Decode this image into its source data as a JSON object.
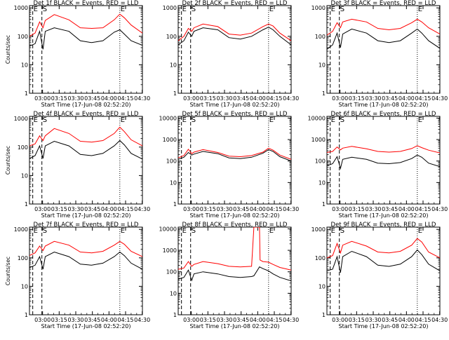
{
  "chart_data": [
    {
      "type": "line",
      "title": "Det 1f BLACK = Events, RED = LLD",
      "xlabel": "Start Time (17-Jun-08 02:52:20)",
      "ylabel": "Counts/sec",
      "yscale": "log",
      "ylim": [
        1,
        1200
      ],
      "xlim": [
        0,
        100
      ],
      "xtick_labels": [
        "03:00",
        "03:15",
        "03:30",
        "03:45",
        "04:00",
        "04:15",
        "04:30"
      ],
      "ytick_labels": [
        "1",
        "10",
        "100",
        "1000"
      ],
      "markers": [
        {
          "label": "E",
          "x": 2.9
        },
        {
          "label": "S",
          "x": 11
        },
        {
          "label": "E",
          "x": 80
        }
      ],
      "series": [
        {
          "color": "#ff0000",
          "x": [
            0,
            5,
            9,
            12,
            14,
            22,
            35,
            45,
            55,
            65,
            75,
            80,
            84,
            90,
            100
          ],
          "values": [
            100,
            130,
            320,
            200,
            360,
            580,
            380,
            200,
            190,
            200,
            380,
            600,
            450,
            250,
            130
          ]
        },
        {
          "color": "#000000",
          "x": [
            0,
            5,
            9,
            12,
            14,
            22,
            35,
            45,
            55,
            65,
            75,
            80,
            84,
            90,
            100
          ],
          "values": [
            45,
            55,
            150,
            35,
            150,
            200,
            150,
            70,
            60,
            70,
            140,
            170,
            120,
            70,
            48
          ]
        }
      ]
    },
    {
      "type": "line",
      "title": "Det 2f BLACK = Events, RED = LLD",
      "xlabel": "Start Time (17-Jun-08 02:52:20)",
      "ylabel": "",
      "yscale": "log",
      "ylim": [
        1,
        1200
      ],
      "xlim": [
        0,
        100
      ],
      "xtick_labels": [
        "03:00",
        "03:15",
        "03:30",
        "03:45",
        "04:00",
        "04:15",
        "04:30"
      ],
      "ytick_labels": [
        "1",
        "10",
        "100",
        "1000"
      ],
      "markers": [
        {
          "label": "E",
          "x": 2.9
        },
        {
          "label": "S",
          "x": 11
        },
        {
          "label": "E",
          "x": 80
        }
      ],
      "series": [
        {
          "color": "#ff0000",
          "x": [
            0,
            5,
            9,
            12,
            14,
            22,
            35,
            45,
            55,
            65,
            75,
            80,
            84,
            90,
            100
          ],
          "values": [
            70,
            100,
            190,
            150,
            200,
            270,
            220,
            120,
            110,
            130,
            220,
            270,
            230,
            130,
            70
          ]
        },
        {
          "color": "#000000",
          "x": [
            0,
            5,
            9,
            12,
            14,
            22,
            35,
            45,
            55,
            65,
            75,
            80,
            84,
            90,
            100
          ],
          "values": [
            50,
            70,
            140,
            100,
            150,
            200,
            170,
            90,
            80,
            100,
            170,
            210,
            170,
            100,
            50
          ]
        }
      ]
    },
    {
      "type": "line",
      "title": "Det 3f BLACK = Events, RED = LLD",
      "xlabel": "Start Time (17-Jun-08 02:52:20)",
      "ylabel": "",
      "yscale": "log",
      "ylim": [
        1,
        1200
      ],
      "xlim": [
        0,
        100
      ],
      "xtick_labels": [
        "03:00",
        "03:15",
        "03:30",
        "03:45",
        "04:00",
        "04:15",
        "04:30"
      ],
      "ytick_labels": [
        "1",
        "10",
        "100",
        "1000"
      ],
      "markers": [
        {
          "label": "E",
          "x": 2.9
        },
        {
          "label": "S",
          "x": 11
        },
        {
          "label": "E",
          "x": 80
        }
      ],
      "series": [
        {
          "color": "#ff0000",
          "x": [
            0,
            5,
            9,
            12,
            14,
            22,
            35,
            45,
            55,
            65,
            75,
            80,
            84,
            90,
            100
          ],
          "values": [
            110,
            150,
            300,
            200,
            320,
            400,
            320,
            190,
            170,
            190,
            300,
            400,
            320,
            200,
            120
          ]
        },
        {
          "color": "#000000",
          "x": [
            0,
            5,
            9,
            12,
            14,
            22,
            35,
            45,
            55,
            65,
            75,
            80,
            84,
            90,
            100
          ],
          "values": [
            35,
            50,
            130,
            40,
            120,
            180,
            130,
            70,
            60,
            70,
            130,
            180,
            130,
            70,
            38
          ]
        }
      ]
    },
    {
      "type": "line",
      "title": "Det 4f BLACK = Events, RED = LLD",
      "xlabel": "Start Time (17-Jun-08 02:52:20)",
      "ylabel": "Counts/sec",
      "yscale": "log",
      "ylim": [
        1,
        1200
      ],
      "xlim": [
        0,
        100
      ],
      "xtick_labels": [
        "03:00",
        "03:15",
        "03:30",
        "03:45",
        "04:00",
        "04:15",
        "04:30"
      ],
      "ytick_labels": [
        "1",
        "10",
        "100",
        "1000"
      ],
      "markers": [
        {
          "label": "E",
          "x": 2.9
        },
        {
          "label": "S",
          "x": 11
        },
        {
          "label": "E",
          "x": 80
        }
      ],
      "series": [
        {
          "color": "#ff0000",
          "x": [
            0,
            5,
            9,
            12,
            14,
            22,
            35,
            45,
            55,
            65,
            75,
            80,
            84,
            90,
            100
          ],
          "values": [
            110,
            130,
            250,
            170,
            250,
            450,
            300,
            160,
            150,
            170,
            300,
            500,
            350,
            180,
            110
          ]
        },
        {
          "color": "#000000",
          "x": [
            0,
            5,
            9,
            12,
            14,
            22,
            35,
            45,
            55,
            65,
            75,
            80,
            84,
            90,
            100
          ],
          "values": [
            40,
            50,
            110,
            40,
            110,
            160,
            110,
            55,
            50,
            60,
            110,
            170,
            120,
            60,
            38
          ]
        }
      ]
    },
    {
      "type": "line",
      "title": "Det 5f BLACK = Events, RED = LLD",
      "xlabel": "Start Time (17-Jun-08 02:52:20)",
      "ylabel": "",
      "yscale": "log",
      "ylim": [
        1,
        12000
      ],
      "xlim": [
        0,
        100
      ],
      "xtick_labels": [
        "03:00",
        "03:15",
        "03:30",
        "03:45",
        "04:00",
        "04:15",
        "04:30"
      ],
      "ytick_labels": [
        "1",
        "10",
        "100",
        "1000",
        "10000"
      ],
      "markers": [
        {
          "label": "E",
          "x": 2.9
        },
        {
          "label": "S",
          "x": 11
        },
        {
          "label": "E",
          "x": 80
        }
      ],
      "series": [
        {
          "color": "#ff0000",
          "x": [
            0,
            5,
            9,
            12,
            14,
            22,
            35,
            45,
            55,
            65,
            75,
            80,
            84,
            90,
            100
          ],
          "values": [
            140,
            180,
            350,
            220,
            260,
            340,
            250,
            170,
            160,
            180,
            260,
            400,
            320,
            190,
            120
          ]
        },
        {
          "color": "#000000",
          "x": [
            0,
            5,
            9,
            12,
            14,
            22,
            35,
            45,
            55,
            65,
            75,
            80,
            84,
            90,
            100
          ],
          "values": [
            120,
            150,
            250,
            190,
            210,
            280,
            220,
            140,
            130,
            150,
            230,
            340,
            280,
            160,
            100
          ]
        }
      ]
    },
    {
      "type": "line",
      "title": "Det 6f BLACK = Events, RED = LLD",
      "xlabel": "Start Time (17-Jun-08 02:52:20)",
      "ylabel": "",
      "yscale": "log",
      "ylim": [
        1,
        12000
      ],
      "xlim": [
        0,
        100
      ],
      "xtick_labels": [
        "03:00",
        "03:15",
        "03:30",
        "03:45",
        "04:00",
        "04:15",
        "04:30"
      ],
      "ytick_labels": [
        "1",
        "10",
        "100",
        "1000",
        "10000"
      ],
      "markers": [
        {
          "label": "E",
          "x": 2.9
        },
        {
          "label": "S",
          "x": 11
        },
        {
          "label": "E",
          "x": 80
        }
      ],
      "series": [
        {
          "color": "#ff0000",
          "x": [
            0,
            5,
            9,
            12,
            14,
            22,
            35,
            45,
            55,
            65,
            75,
            80,
            84,
            90,
            100
          ],
          "values": [
            250,
            280,
            450,
            330,
            400,
            480,
            370,
            280,
            260,
            280,
            380,
            520,
            420,
            320,
            240
          ]
        },
        {
          "color": "#000000",
          "x": [
            0,
            5,
            9,
            12,
            14,
            22,
            35,
            45,
            55,
            65,
            75,
            80,
            84,
            90,
            100
          ],
          "values": [
            60,
            75,
            160,
            45,
            120,
            150,
            120,
            80,
            75,
            85,
            130,
            190,
            150,
            80,
            55
          ]
        }
      ]
    },
    {
      "type": "line",
      "title": "Det 7f BLACK = Events, RED = LLD",
      "xlabel": "Start Time (17-Jun-08 02:52:20)",
      "ylabel": "Counts/sec",
      "yscale": "log",
      "ylim": [
        1,
        1200
      ],
      "xlim": [
        0,
        100
      ],
      "xtick_labels": [
        "03:00",
        "03:15",
        "03:30",
        "03:45",
        "04:00",
        "04:15",
        "04:30"
      ],
      "ytick_labels": [
        "1",
        "10",
        "100",
        "1000"
      ],
      "markers": [
        {
          "label": "E",
          "x": 2.9
        },
        {
          "label": "S",
          "x": 11
        },
        {
          "label": "E",
          "x": 80
        }
      ],
      "series": [
        {
          "color": "#ff0000",
          "x": [
            0,
            5,
            9,
            12,
            14,
            22,
            35,
            45,
            55,
            65,
            75,
            80,
            84,
            90,
            100
          ],
          "values": [
            120,
            150,
            260,
            180,
            260,
            380,
            280,
            160,
            150,
            170,
            280,
            380,
            300,
            170,
            110
          ]
        },
        {
          "color": "#000000",
          "x": [
            0,
            5,
            9,
            12,
            14,
            22,
            35,
            45,
            55,
            65,
            75,
            80,
            84,
            90,
            100
          ],
          "values": [
            45,
            55,
            110,
            40,
            110,
            160,
            110,
            60,
            55,
            65,
            110,
            160,
            120,
            65,
            40
          ]
        }
      ]
    },
    {
      "type": "line",
      "title": "Det 8f BLACK = Events, RED = LLD",
      "xlabel": "Start Time (17-Jun-08 02:52:20)",
      "ylabel": "",
      "yscale": "log",
      "ylim": [
        1,
        12000
      ],
      "xlim": [
        0,
        100
      ],
      "xtick_labels": [
        "03:00",
        "03:15",
        "03:30",
        "03:45",
        "04:00",
        "04:15",
        "04:30"
      ],
      "ytick_labels": [
        "1",
        "10",
        "100",
        "1000",
        "10000"
      ],
      "markers": [
        {
          "label": "E",
          "x": 2.9
        },
        {
          "label": "S",
          "x": 11
        },
        {
          "label": "E",
          "x": 80
        }
      ],
      "series": [
        {
          "color": "#ff0000",
          "x": [
            0,
            5,
            9,
            12,
            14,
            22,
            35,
            45,
            55,
            65,
            67,
            67.5,
            70,
            72,
            72.5,
            75,
            80,
            84,
            90,
            100
          ],
          "values": [
            130,
            150,
            300,
            180,
            220,
            300,
            240,
            180,
            170,
            180,
            12000,
            12000,
            12000,
            12000,
            350,
            300,
            280,
            220,
            160,
            120
          ]
        },
        {
          "color": "#000000",
          "x": [
            0,
            5,
            9,
            12,
            14,
            22,
            35,
            45,
            55,
            65,
            67,
            72,
            75,
            80,
            84,
            90,
            100
          ],
          "values": [
            45,
            55,
            120,
            40,
            80,
            100,
            80,
            60,
            55,
            60,
            65,
            170,
            140,
            110,
            80,
            55,
            38
          ]
        }
      ]
    },
    {
      "type": "line",
      "title": "Det 9f BLACK = Events, RED = LLD",
      "xlabel": "Start Time (17-Jun-08 02:52:20)",
      "ylabel": "",
      "yscale": "log",
      "ylim": [
        1,
        1200
      ],
      "xlim": [
        0,
        100
      ],
      "xtick_labels": [
        "03:00",
        "03:15",
        "03:30",
        "03:45",
        "04:00",
        "04:15",
        "04:30"
      ],
      "ytick_labels": [
        "1",
        "10",
        "100",
        "1000"
      ],
      "markers": [
        {
          "label": "E",
          "x": 2.9
        },
        {
          "label": "S",
          "x": 11
        },
        {
          "label": "E",
          "x": 80
        }
      ],
      "series": [
        {
          "color": "#ff0000",
          "x": [
            0,
            5,
            9,
            12,
            14,
            22,
            35,
            45,
            55,
            65,
            75,
            80,
            84,
            90,
            100
          ],
          "values": [
            100,
            120,
            320,
            150,
            280,
            380,
            260,
            160,
            150,
            170,
            280,
            480,
            360,
            160,
            100
          ]
        },
        {
          "color": "#000000",
          "x": [
            0,
            5,
            9,
            12,
            14,
            22,
            35,
            45,
            55,
            65,
            75,
            80,
            84,
            90,
            100
          ],
          "values": [
            35,
            40,
            110,
            30,
            110,
            170,
            110,
            55,
            50,
            60,
            110,
            190,
            130,
            60,
            35
          ]
        }
      ]
    }
  ]
}
